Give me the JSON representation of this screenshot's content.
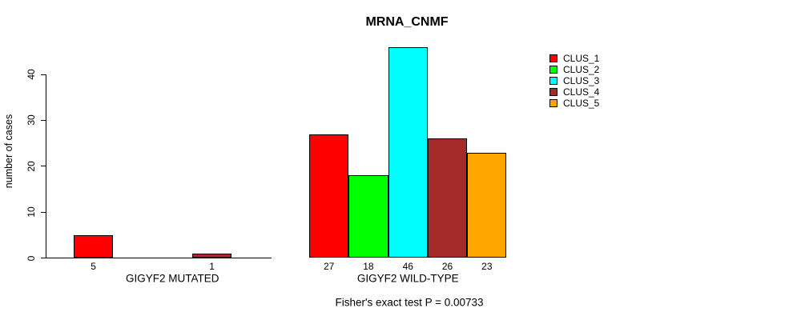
{
  "title": "MRNA_CNMF",
  "footnote": "Fisher's exact test P = 0.00733",
  "chart_data": {
    "type": "bar",
    "title": "MRNA_CNMF",
    "xlabel": "",
    "ylabel": "number of cases",
    "annotation": "Fisher's exact test P = 0.00733",
    "categories": [
      "GIGYF2 MUTATED",
      "GIGYF2 WILD-TYPE"
    ],
    "series": [
      {
        "name": "CLUS_1",
        "color": "#ff0000",
        "values": [
          5,
          27
        ]
      },
      {
        "name": "CLUS_2",
        "color": "#00ff00",
        "values": [
          0,
          18
        ]
      },
      {
        "name": "CLUS_3",
        "color": "#00ffff",
        "values": [
          0,
          46
        ]
      },
      {
        "name": "CLUS_4",
        "color": "#a52a2a",
        "values": [
          1,
          26
        ]
      },
      {
        "name": "CLUS_5",
        "color": "#ffa500",
        "values": [
          0,
          23
        ]
      }
    ],
    "bar_value_labels": true,
    "yticks": [
      0,
      10,
      20,
      30,
      40
    ],
    "ylim": [
      0,
      46
    ],
    "grid": false,
    "legend_position": "right",
    "legend": [
      "CLUS_1",
      "CLUS_2",
      "CLUS_3",
      "CLUS_4",
      "CLUS_5"
    ]
  }
}
